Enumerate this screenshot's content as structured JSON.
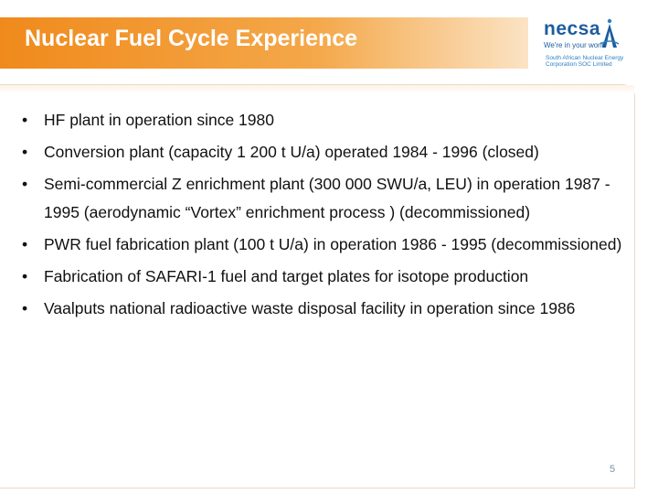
{
  "header": {
    "title": "Nuclear Fuel Cycle Experience"
  },
  "logo": {
    "wordmark": "necsa",
    "tagline": "We're in your world",
    "subtext_line1": "South African Nuclear Energy",
    "subtext_line2": "Corporation SOC Limited",
    "brand_color": "#1d5c9e",
    "icon": "necsa-logo-icon"
  },
  "accent_color": "#f08a1c",
  "bullets": [
    {
      "text": "HF plant in operation since 1980"
    },
    {
      "text": "Conversion plant (capacity 1 200 t U/a) operated 1984 - 1996 (closed)"
    },
    {
      "text": "Semi-commercial Z enrichment plant (300 000 SWU/a, LEU) in operation 1987 - 1995 (aerodynamic “Vortex” enrichment process ) (decommissioned)"
    },
    {
      "text": "PWR fuel fabrication plant  (100 t U/a) in operation 1986 - 1995 (decommissioned)"
    },
    {
      "text": "Fabrication of SAFARI-1 fuel and target plates for isotope production"
    },
    {
      "text": "Vaalputs national radioactive waste disposal facility in operation since 1986"
    }
  ],
  "footer": {
    "page_number": "5"
  }
}
